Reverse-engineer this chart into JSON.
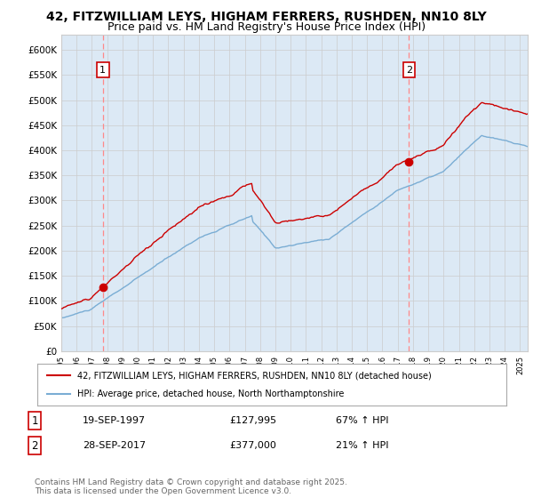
{
  "title_line1": "42, FITZWILLIAM LEYS, HIGHAM FERRERS, RUSHDEN, NN10 8LY",
  "title_line2": "Price paid vs. HM Land Registry's House Price Index (HPI)",
  "ytick_values": [
    0,
    50000,
    100000,
    150000,
    200000,
    250000,
    300000,
    350000,
    400000,
    450000,
    500000,
    550000,
    600000
  ],
  "ylim": [
    0,
    630000
  ],
  "xlim_start": 1995.0,
  "xlim_end": 2025.5,
  "sale1_date": 1997.72,
  "sale1_price": 127995,
  "sale1_label": "1",
  "sale2_date": 2017.74,
  "sale2_price": 377000,
  "sale2_label": "2",
  "red_line_color": "#cc0000",
  "blue_line_color": "#7aadd4",
  "dashed_line_color": "#ff8888",
  "grid_color": "#cccccc",
  "plot_bg_color": "#dce9f5",
  "background_color": "#ffffff",
  "legend_label1": "42, FITZWILLIAM LEYS, HIGHAM FERRERS, RUSHDEN, NN10 8LY (detached house)",
  "legend_label2": "HPI: Average price, detached house, North Northamptonshire",
  "footer": "Contains HM Land Registry data © Crown copyright and database right 2025.\nThis data is licensed under the Open Government Licence v3.0.",
  "title_fontsize": 10,
  "subtitle_fontsize": 9
}
